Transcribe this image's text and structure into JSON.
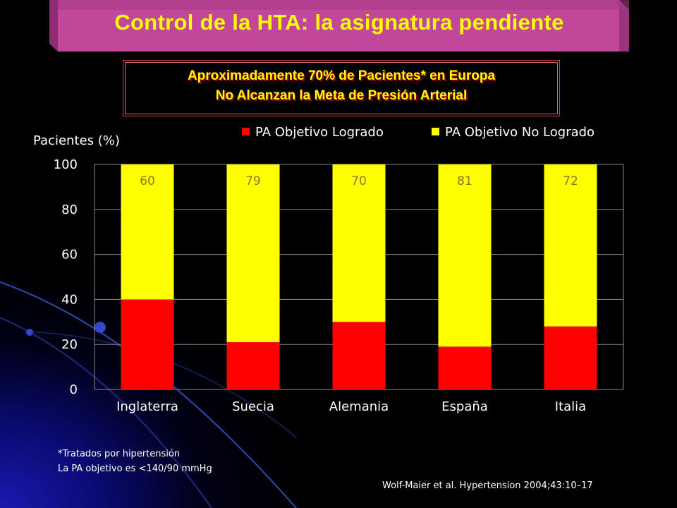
{
  "slide": {
    "title": "Control de la HTA: la asignatura pendiente",
    "headline": {
      "line1": "Aproximadamente 70% de Pacientes* en Europa",
      "line2": "No Alcanzan la Meta de Presión Arterial"
    },
    "footnotes": {
      "line1": "*Tratados por hipertensión",
      "line2": "La PA objetivo es <140/90 mmHg"
    },
    "citation": "Wolf-Maier et al. Hypertension 2004;43:10–17"
  },
  "colors": {
    "background": "#000000",
    "title_banner": "#c2479a",
    "title_text": "#ffff00",
    "achieved": "#ff0000",
    "not_achieved": "#ffff00"
  },
  "chart_data": {
    "type": "bar",
    "stacked": true,
    "ylabel": "Pacientes (%)",
    "ylim": [
      0,
      100
    ],
    "yticks": [
      0,
      20,
      40,
      60,
      80,
      100
    ],
    "grid": true,
    "legend_position": "top",
    "categories": [
      "Inglaterra",
      "Suecia",
      "Alemania",
      "España",
      "Italia"
    ],
    "series": [
      {
        "name": "PA Objetivo Logrado",
        "color": "#ff0000",
        "values": [
          40,
          21,
          30,
          19,
          28
        ],
        "labels": []
      },
      {
        "name": "PA Objetivo No Logrado",
        "color": "#ffff00",
        "values": [
          60,
          79,
          70,
          81,
          72
        ],
        "labels": [
          "60",
          "79",
          "70",
          "81",
          "72"
        ]
      }
    ]
  }
}
